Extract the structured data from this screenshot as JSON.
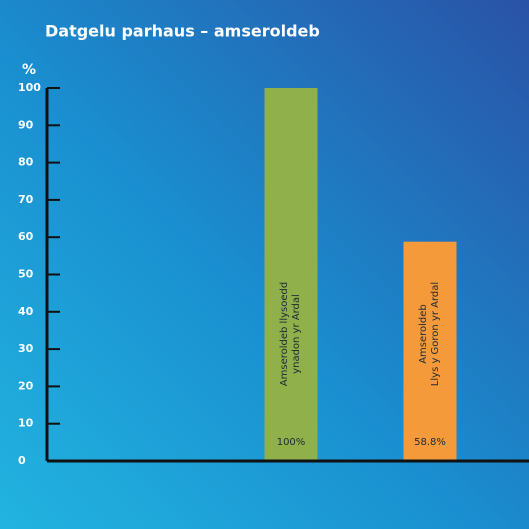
{
  "chart_data": {
    "type": "bar",
    "title": "Datgelu parhaus – amseroldeb",
    "ylabel": "%",
    "categories": [
      "Amseroldeb llysoedd\nynadon yr Ardal",
      "Amseroldeb\nLlys y Goron yr Ardal"
    ],
    "values": [
      100,
      58.8
    ],
    "value_labels": [
      "100%",
      "58.8%"
    ],
    "colors": [
      "#8fb04b",
      "#f59a3a"
    ],
    "ylim": [
      0,
      100
    ],
    "yticks": [
      0,
      10,
      20,
      30,
      40,
      50,
      60,
      70,
      80,
      90,
      100
    ],
    "grid": false
  }
}
